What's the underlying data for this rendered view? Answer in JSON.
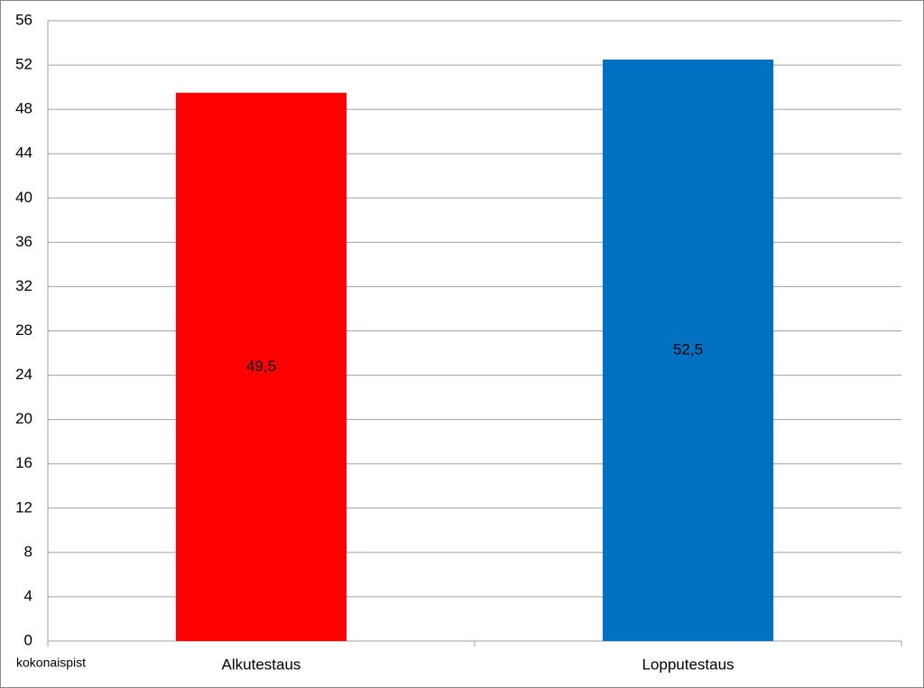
{
  "chart_data": {
    "type": "bar",
    "x_label": "kokonaispist",
    "categories": [
      "Alkutestaus",
      "Lopputestaus"
    ],
    "values": [
      49.5,
      52.5
    ],
    "value_labels": [
      "49,5",
      "52,5"
    ],
    "colors": [
      "#ff0000",
      "#0070c0"
    ],
    "ylim": [
      0,
      56
    ],
    "yticks": [
      0,
      4,
      8,
      12,
      16,
      20,
      24,
      28,
      32,
      36,
      40,
      44,
      48,
      52,
      56
    ],
    "grid": true
  }
}
